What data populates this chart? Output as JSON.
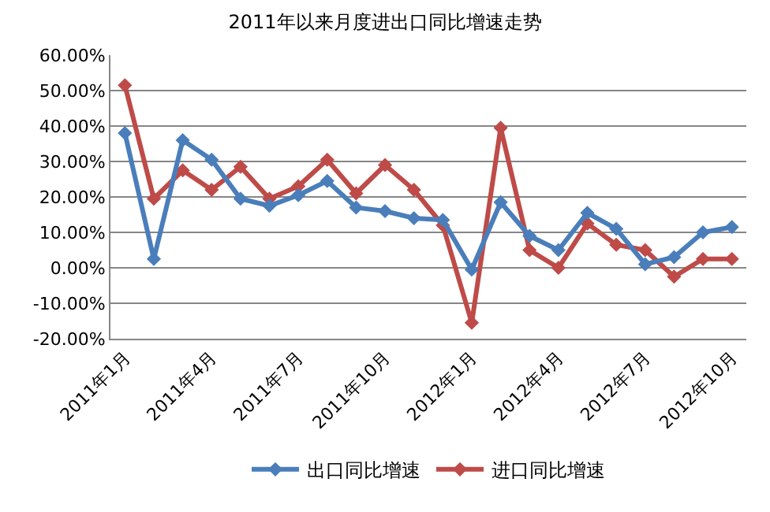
{
  "chart_data": {
    "type": "line",
    "title": "2011年以来月度进出口同比增速走势",
    "categories": [
      "2011年1月",
      null,
      null,
      "2011年4月",
      null,
      null,
      "2011年7月",
      null,
      null,
      "2011年10月",
      null,
      null,
      "2012年1月",
      null,
      null,
      "2012年4月",
      null,
      null,
      "2012年7月",
      null,
      null,
      "2012年10月"
    ],
    "series": [
      {
        "name": "出口同比增速",
        "color": "#4a7ebb",
        "values": [
          38,
          2.5,
          36,
          30.5,
          19.5,
          17.5,
          20.5,
          24.5,
          17,
          16,
          14,
          13.5,
          -0.5,
          18.5,
          9,
          5,
          15.5,
          11,
          1,
          3,
          10,
          11.5
        ]
      },
      {
        "name": "进口同比增速",
        "color": "#be4b48",
        "values": [
          51.5,
          19.5,
          27.5,
          22,
          28.5,
          19.5,
          23,
          30.5,
          21,
          29,
          22,
          12,
          -15.5,
          39.5,
          5,
          0,
          12.5,
          6.5,
          5,
          -2.5,
          2.5,
          2.5
        ]
      }
    ],
    "ylim": [
      -20,
      60
    ],
    "yticks": [
      {
        "value": -20,
        "label": "-20.00%"
      },
      {
        "value": -10,
        "label": "-10.00%"
      },
      {
        "value": 0,
        "label": "0.00%"
      },
      {
        "value": 10,
        "label": "10.00%"
      },
      {
        "value": 20,
        "label": "20.00%"
      },
      {
        "value": 30,
        "label": "30.00%"
      },
      {
        "value": 40,
        "label": "40.00%"
      },
      {
        "value": 50,
        "label": "50.00%"
      },
      {
        "value": 60,
        "label": "60.00%"
      }
    ],
    "grid": "y",
    "legend": "bottom",
    "marker": "diamond",
    "line_style": "solid"
  }
}
